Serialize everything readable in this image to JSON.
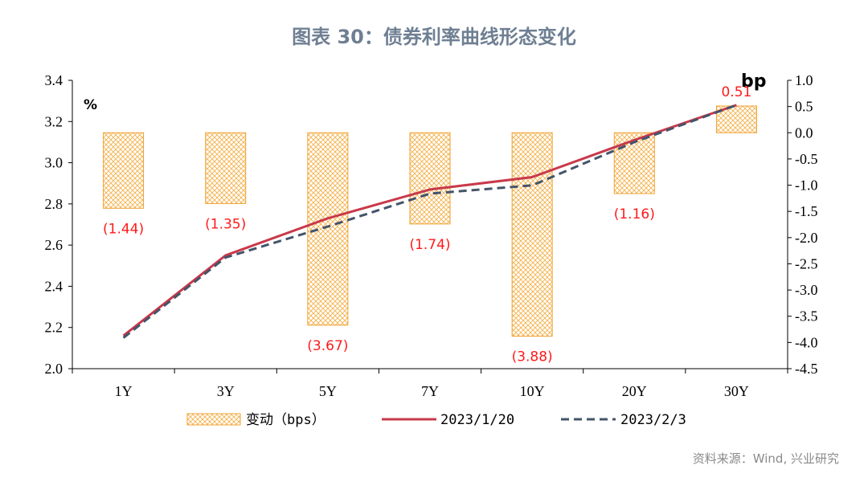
{
  "title": "图表 30：债券利率曲线形态变化",
  "source": "资料来源：Wind, 兴业研究",
  "colors": {
    "bar_stroke": "#f0a030",
    "bar_hatch": "#f5b14a",
    "line_1": "#c8394a",
    "line_2": "#44546a",
    "title": "#6f7f93"
  },
  "chart_data": {
    "type": "bar+line",
    "categories": [
      "1Y",
      "3Y",
      "5Y",
      "7Y",
      "10Y",
      "20Y",
      "30Y"
    ],
    "left_axis": {
      "unit": "%",
      "ylim": [
        2.0,
        3.4
      ],
      "ticks": [
        "2.0",
        "2.2",
        "2.4",
        "2.6",
        "2.8",
        "3.0",
        "3.2",
        "3.4"
      ]
    },
    "right_axis": {
      "unit": "bp",
      "ylim": [
        -4.5,
        1.0
      ],
      "ticks": [
        "-4.5",
        "-4.0",
        "-3.5",
        "-3.0",
        "-2.5",
        "-2.0",
        "-1.5",
        "-1.0",
        "-0.5",
        "0.0",
        "0.5",
        "1.0"
      ]
    },
    "bars": {
      "name": "变动（bps）",
      "axis": "right",
      "values": [
        -1.44,
        -1.35,
        -3.67,
        -1.74,
        -3.88,
        -1.16,
        0.51
      ],
      "labels": [
        "(1.44)",
        "(1.35)",
        "(3.67)",
        "(1.74)",
        "(3.88)",
        "(1.16)",
        "0.51"
      ]
    },
    "series": [
      {
        "name": "2023/1/20",
        "axis": "left",
        "style": "solid",
        "values": [
          2.16,
          2.55,
          2.73,
          2.87,
          2.93,
          3.11,
          3.28
        ]
      },
      {
        "name": "2023/2/3",
        "axis": "left",
        "style": "dashed",
        "values": [
          2.15,
          2.54,
          2.69,
          2.85,
          2.89,
          3.1,
          3.28
        ]
      }
    ],
    "legend_position": "bottom",
    "grid": false
  }
}
